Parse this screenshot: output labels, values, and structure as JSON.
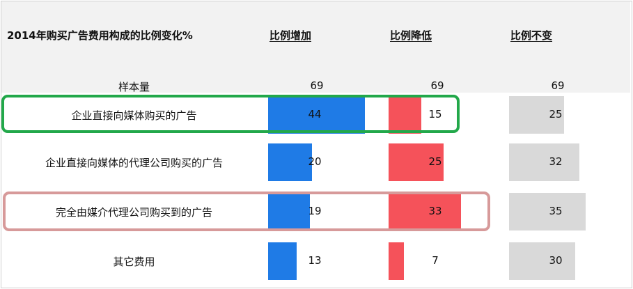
{
  "chart_data": {
    "type": "bar",
    "title": "2014年购买广告费用构成的比例变化%",
    "columns": [
      "比例增加",
      "比例降低",
      "比例不变"
    ],
    "sample": {
      "label": "样本量",
      "values": [
        69,
        69,
        69
      ]
    },
    "categories": [
      "企业直接向媒体购买的广告",
      "企业直接向媒体的代理公司购买的广告",
      "完全由媒介代理公司购买到的广告",
      "其它费用"
    ],
    "series": [
      {
        "name": "比例增加",
        "values": [
          44,
          20,
          19,
          13
        ],
        "color": "#1f7be6"
      },
      {
        "name": "比例降低",
        "values": [
          15,
          25,
          33,
          7
        ],
        "color": "#f5525a"
      },
      {
        "name": "比例不变",
        "values": [
          25,
          32,
          35,
          30
        ],
        "color": "#d9d9d9"
      }
    ],
    "highlights": [
      {
        "category": "企业直接向媒体购买的广告",
        "color": "#22a84a"
      },
      {
        "category": "完全由媒介代理公司购买到的广告",
        "color": "#d79a9a"
      }
    ]
  }
}
